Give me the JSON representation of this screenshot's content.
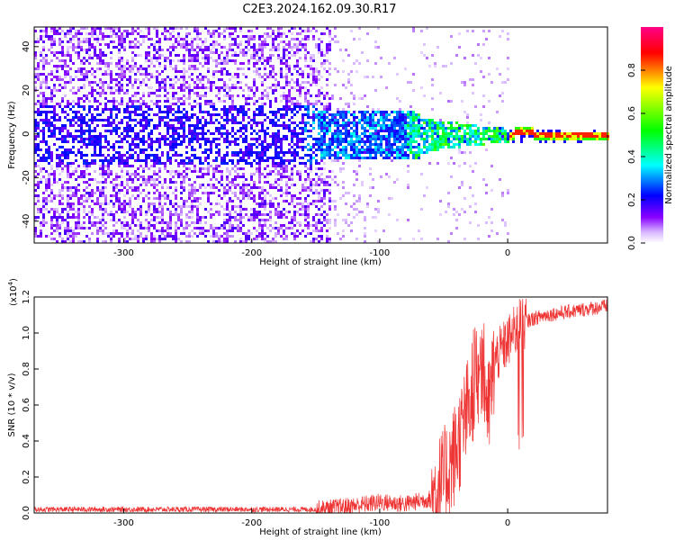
{
  "title": "C2E3.2024.162.09.30.R17",
  "chart_data": [
    {
      "type": "heatmap",
      "xlabel": "Height of straight line (km)",
      "ylabel": "Frequency (Hz)",
      "xlim": [
        -370,
        78
      ],
      "ylim": [
        -50,
        49
      ],
      "xticks": [
        "-300",
        "-200",
        "-100",
        "0"
      ],
      "xtick_values": [
        -300,
        -200,
        -100,
        0
      ],
      "yticks": [
        "-40",
        "-20",
        "0",
        "20",
        "40"
      ],
      "ytick_values": [
        -40,
        -20,
        0,
        20,
        40
      ],
      "colorbar": {
        "label": "Normalized spectral amplitude",
        "range": [
          0,
          1
        ],
        "ticks": [
          "0.0",
          "0.2",
          "0.4",
          "0.6",
          "0.8"
        ],
        "tick_values": [
          0,
          0.2,
          0.4,
          0.6,
          0.8
        ],
        "colors": [
          "#ffffff",
          "#8800ff",
          "#0000ff",
          "#00ffff",
          "#00ff00",
          "#ffff00",
          "#ff0000",
          "#ff00aa"
        ]
      }
    },
    {
      "type": "line",
      "xlabel": "Height of straight line (km)",
      "ylabel": "SNR (10 * v/v)",
      "y_scale_label": "(x10",
      "y_scale_exp": "4",
      "y_scale_close": ")",
      "xlim": [
        -370,
        78
      ],
      "ylim": [
        0,
        1.2
      ],
      "xticks": [
        "-300",
        "-200",
        "-100",
        "0"
      ],
      "xtick_values": [
        -300,
        -200,
        -100,
        0
      ],
      "yticks": [
        "0.0",
        "0.2",
        "0.4",
        "0.6",
        "0.8",
        "1.0",
        "1.2"
      ],
      "ytick_values": [
        0,
        0.2,
        0.4,
        0.6,
        0.8,
        1.0,
        1.2
      ],
      "color": "#ee3333",
      "profile_x": [
        -370,
        -300,
        -200,
        -150,
        -120,
        -100,
        -80,
        -60,
        -50,
        -40,
        -30,
        -25,
        -20,
        -15,
        -10,
        0,
        10,
        20,
        30,
        50,
        78
      ],
      "profile_y": [
        0.02,
        0.02,
        0.02,
        0.02,
        0.04,
        0.06,
        0.05,
        0.08,
        0.18,
        0.35,
        0.6,
        0.75,
        0.85,
        0.55,
        0.85,
        0.95,
        1.05,
        1.08,
        1.1,
        1.12,
        1.15
      ]
    }
  ]
}
